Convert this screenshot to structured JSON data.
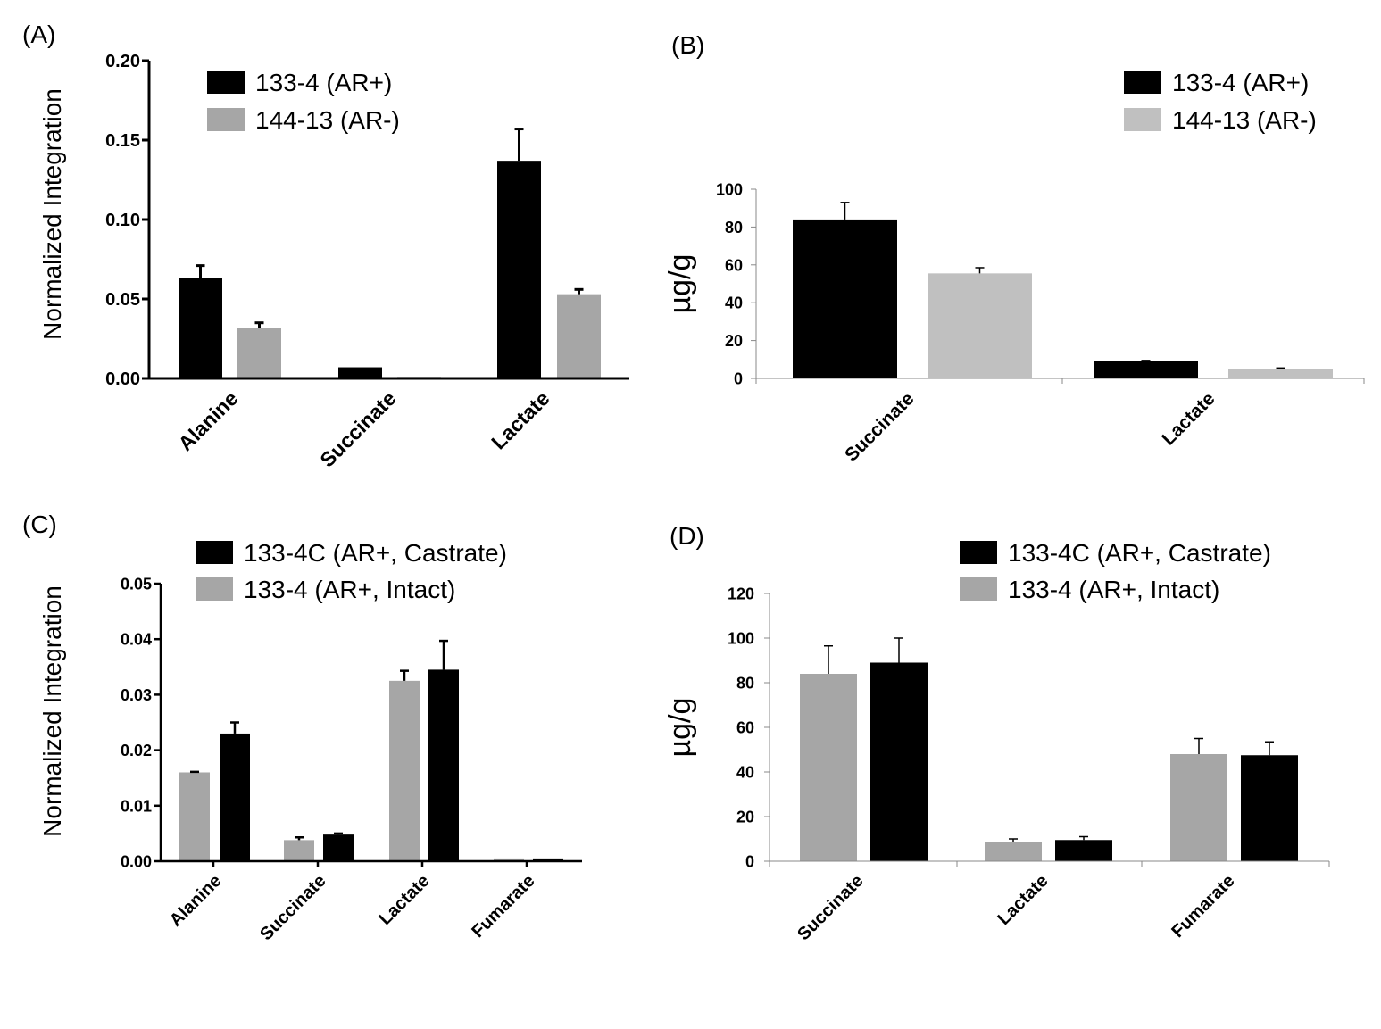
{
  "chart_data": [
    {
      "panel": "(A)",
      "type": "bar",
      "title": "",
      "xlabel": "",
      "ylabel": "Normalized Integration",
      "ylim": [
        0,
        0.2
      ],
      "yticks": [
        "0.00",
        "0.05",
        "0.10",
        "0.15",
        "0.20"
      ],
      "categories": [
        "Alanine",
        "Succinate",
        "Lactate"
      ],
      "series": [
        {
          "name": "133-4 (AR+)",
          "color": "#000000",
          "values": [
            0.063,
            0.007,
            0.137
          ],
          "errors": [
            0.008,
            0.0,
            0.02
          ]
        },
        {
          "name": "144-13 (AR-)",
          "color": "#a6a6a6",
          "values": [
            0.032,
            0.001,
            0.053
          ],
          "errors": [
            0.003,
            0.0,
            0.003
          ]
        }
      ],
      "legend_position": "top-left"
    },
    {
      "panel": "(B)",
      "type": "bar",
      "title": "",
      "xlabel": "",
      "ylabel": "µg/g",
      "ylim": [
        0,
        100
      ],
      "yticks": [
        "0",
        "20",
        "40",
        "60",
        "80",
        "100"
      ],
      "categories": [
        "Succinate",
        "Lactate"
      ],
      "series": [
        {
          "name": "133-4 (AR+)",
          "color": "#000000",
          "values": [
            84,
            9
          ],
          "errors": [
            9,
            0.5
          ]
        },
        {
          "name": "144-13 (AR-)",
          "color": "#c0c0c0",
          "values": [
            55.5,
            5
          ],
          "errors": [
            3,
            0.5
          ]
        }
      ],
      "legend_position": "top-right"
    },
    {
      "panel": "(C)",
      "type": "bar",
      "title": "",
      "xlabel": "",
      "ylabel": "Normalized Integration",
      "ylim": [
        0,
        0.05
      ],
      "yticks": [
        "0.00",
        "0.01",
        "0.02",
        "0.03",
        "0.04",
        "0.05"
      ],
      "categories": [
        "Alanine",
        "Succinate",
        "Lactate",
        "Fumarate"
      ],
      "series": [
        {
          "name": "133-4 (AR+, Intact)",
          "color": "#a6a6a6",
          "values": [
            0.016,
            0.0038,
            0.0325,
            0.0005
          ],
          "errors": [
            0.0001,
            0.0005,
            0.0018,
            0.0
          ]
        },
        {
          "name": "133-4C (AR+, Castrate)",
          "color": "#000000",
          "values": [
            0.023,
            0.0048,
            0.0345,
            0.0005
          ],
          "errors": [
            0.002,
            0.0002,
            0.0052,
            0.0
          ]
        }
      ],
      "legend_order": [
        "133-4C (AR+, Castrate)",
        "133-4 (AR+, Intact)"
      ],
      "legend_position": "top"
    },
    {
      "panel": "(D)",
      "type": "bar",
      "title": "",
      "xlabel": "",
      "ylabel": "µg/g",
      "ylim": [
        0,
        120
      ],
      "yticks": [
        "0",
        "20",
        "40",
        "60",
        "80",
        "100",
        "120"
      ],
      "categories": [
        "Succinate",
        "Lactate",
        "Fumarate"
      ],
      "series": [
        {
          "name": "133-4 (AR+, Intact)",
          "color": "#a6a6a6",
          "values": [
            84,
            8.5,
            48
          ],
          "errors": [
            12.5,
            1.5,
            7
          ]
        },
        {
          "name": "133-4C (AR+, Castrate)",
          "color": "#000000",
          "values": [
            89,
            9.5,
            47.5
          ],
          "errors": [
            11,
            1.5,
            6
          ]
        }
      ],
      "legend_order": [
        "133-4C (AR+, Castrate)",
        "133-4 (AR+, Intact)"
      ],
      "legend_position": "top"
    }
  ]
}
